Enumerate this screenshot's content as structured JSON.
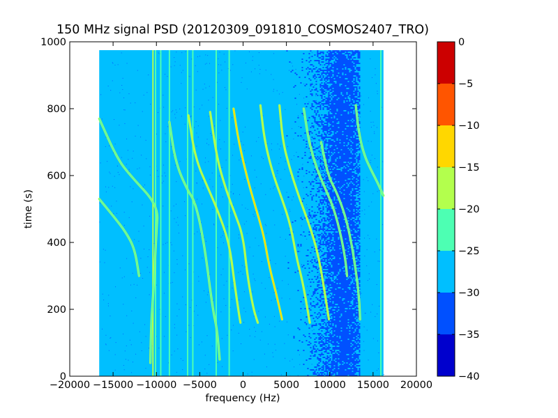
{
  "chart_data": {
    "type": "heatmap",
    "title": "150 MHz signal PSD (20120309_091810_COSMOS2407_TRO)",
    "xlabel": "frequency (Hz)",
    "ylabel": "time (s)",
    "xlim": [
      -20000,
      20000
    ],
    "ylim": [
      0,
      1000
    ],
    "x_ticks": [
      -20000,
      -15000,
      -10000,
      -5000,
      0,
      5000,
      10000,
      15000,
      20000
    ],
    "y_ticks": [
      0,
      200,
      400,
      600,
      800,
      1000
    ],
    "data_extent": {
      "x": [
        -16600,
        16200
      ],
      "y": [
        0,
        975
      ]
    },
    "colormap": "jet",
    "colorbar": {
      "range": [
        -40,
        0
      ],
      "ticks": [
        0,
        -5,
        -10,
        -15,
        -20,
        -25,
        -30,
        -35,
        -40
      ],
      "levels": [
        {
          "range": [
            -40,
            -35
          ],
          "color": "#0000cd"
        },
        {
          "range": [
            -35,
            -30
          ],
          "color": "#0050ff"
        },
        {
          "range": [
            -30,
            -25
          ],
          "color": "#00bfff"
        },
        {
          "range": [
            -25,
            -20
          ],
          "color": "#4dffb3"
        },
        {
          "range": [
            -20,
            -15
          ],
          "color": "#b3ff4d"
        },
        {
          "range": [
            -15,
            -10
          ],
          "color": "#ffd700"
        },
        {
          "range": [
            -10,
            -5
          ],
          "color": "#ff5500"
        },
        {
          "range": [
            -5,
            0
          ],
          "color": "#cc0000"
        }
      ]
    },
    "background_level": -27,
    "noise_band": {
      "freq": [
        7000,
        13500
      ],
      "level": -33
    },
    "vertical_lines": [
      {
        "freq": -10400,
        "level": -20
      },
      {
        "freq": -10100,
        "level": -24
      },
      {
        "freq": -9500,
        "level": -22
      },
      {
        "freq": -8500,
        "level": -24
      },
      {
        "freq": -6400,
        "level": -22
      },
      {
        "freq": -5800,
        "level": -24
      },
      {
        "freq": -3100,
        "level": -24
      },
      {
        "freq": -1600,
        "level": -22
      },
      {
        "freq": 15900,
        "level": -24
      }
    ],
    "doppler_tracks": [
      {
        "points": [
          [
            -16600,
            770
          ],
          [
            -14500,
            650
          ],
          [
            -13000,
            600
          ],
          [
            -9800,
            510
          ],
          [
            -10000,
            430
          ],
          [
            -10400,
            230
          ],
          [
            -10600,
            160
          ],
          [
            -10700,
            40
          ]
        ],
        "level": -22
      },
      {
        "points": [
          [
            -16600,
            530
          ],
          [
            -15000,
            480
          ],
          [
            -13500,
            430
          ],
          [
            -12500,
            380
          ],
          [
            -12000,
            300
          ]
        ],
        "level": -24
      },
      {
        "points": [
          [
            -8500,
            760
          ],
          [
            -7800,
            640
          ],
          [
            -6500,
            560
          ],
          [
            -5500,
            520
          ],
          [
            -4500,
            400
          ],
          [
            -3500,
            200
          ],
          [
            -3000,
            140
          ],
          [
            -2700,
            50
          ]
        ],
        "level": -22
      },
      {
        "points": [
          [
            -6300,
            780
          ],
          [
            -5500,
            650
          ],
          [
            -4000,
            560
          ],
          [
            -3000,
            500
          ],
          [
            -1600,
            400
          ],
          [
            -1000,
            280
          ],
          [
            -500,
            190
          ],
          [
            -300,
            160
          ]
        ],
        "level": -19
      },
      {
        "points": [
          [
            -3800,
            790
          ],
          [
            -3000,
            650
          ],
          [
            -2000,
            560
          ],
          [
            -1000,
            490
          ],
          [
            0,
            420
          ],
          [
            500,
            300
          ],
          [
            1200,
            200
          ],
          [
            1700,
            160
          ]
        ],
        "level": -17
      },
      {
        "points": [
          [
            -1100,
            800
          ],
          [
            -500,
            700
          ],
          [
            500,
            590
          ],
          [
            1500,
            500
          ],
          [
            2400,
            420
          ],
          [
            3000,
            330
          ],
          [
            3800,
            250
          ],
          [
            4500,
            170
          ]
        ],
        "level": -14
      },
      {
        "points": [
          [
            2000,
            810
          ],
          [
            2500,
            700
          ],
          [
            3500,
            600
          ],
          [
            4500,
            530
          ],
          [
            5500,
            450
          ],
          [
            6200,
            350
          ],
          [
            6900,
            280
          ],
          [
            7700,
            160
          ]
        ],
        "level": -18
      },
      {
        "points": [
          [
            4200,
            810
          ],
          [
            4600,
            700
          ],
          [
            5400,
            620
          ],
          [
            6400,
            540
          ],
          [
            7400,
            470
          ],
          [
            8300,
            400
          ],
          [
            9000,
            320
          ],
          [
            9900,
            170
          ]
        ],
        "level": -20
      },
      {
        "points": [
          [
            7000,
            800
          ],
          [
            7600,
            700
          ],
          [
            8500,
            620
          ],
          [
            9500,
            560
          ],
          [
            10500,
            500
          ],
          [
            11300,
            420
          ],
          [
            11800,
            350
          ],
          [
            12000,
            300
          ]
        ],
        "level": -22
      },
      {
        "points": [
          [
            9000,
            700
          ],
          [
            9800,
            600
          ],
          [
            10800,
            550
          ],
          [
            11800,
            480
          ],
          [
            12500,
            400
          ],
          [
            13100,
            300
          ],
          [
            13400,
            230
          ],
          [
            13500,
            170
          ]
        ],
        "level": -23
      },
      {
        "points": [
          [
            13000,
            810
          ],
          [
            13400,
            720
          ],
          [
            14000,
            660
          ],
          [
            14700,
            620
          ],
          [
            15500,
            580
          ],
          [
            16200,
            540
          ]
        ],
        "level": -21
      }
    ]
  }
}
